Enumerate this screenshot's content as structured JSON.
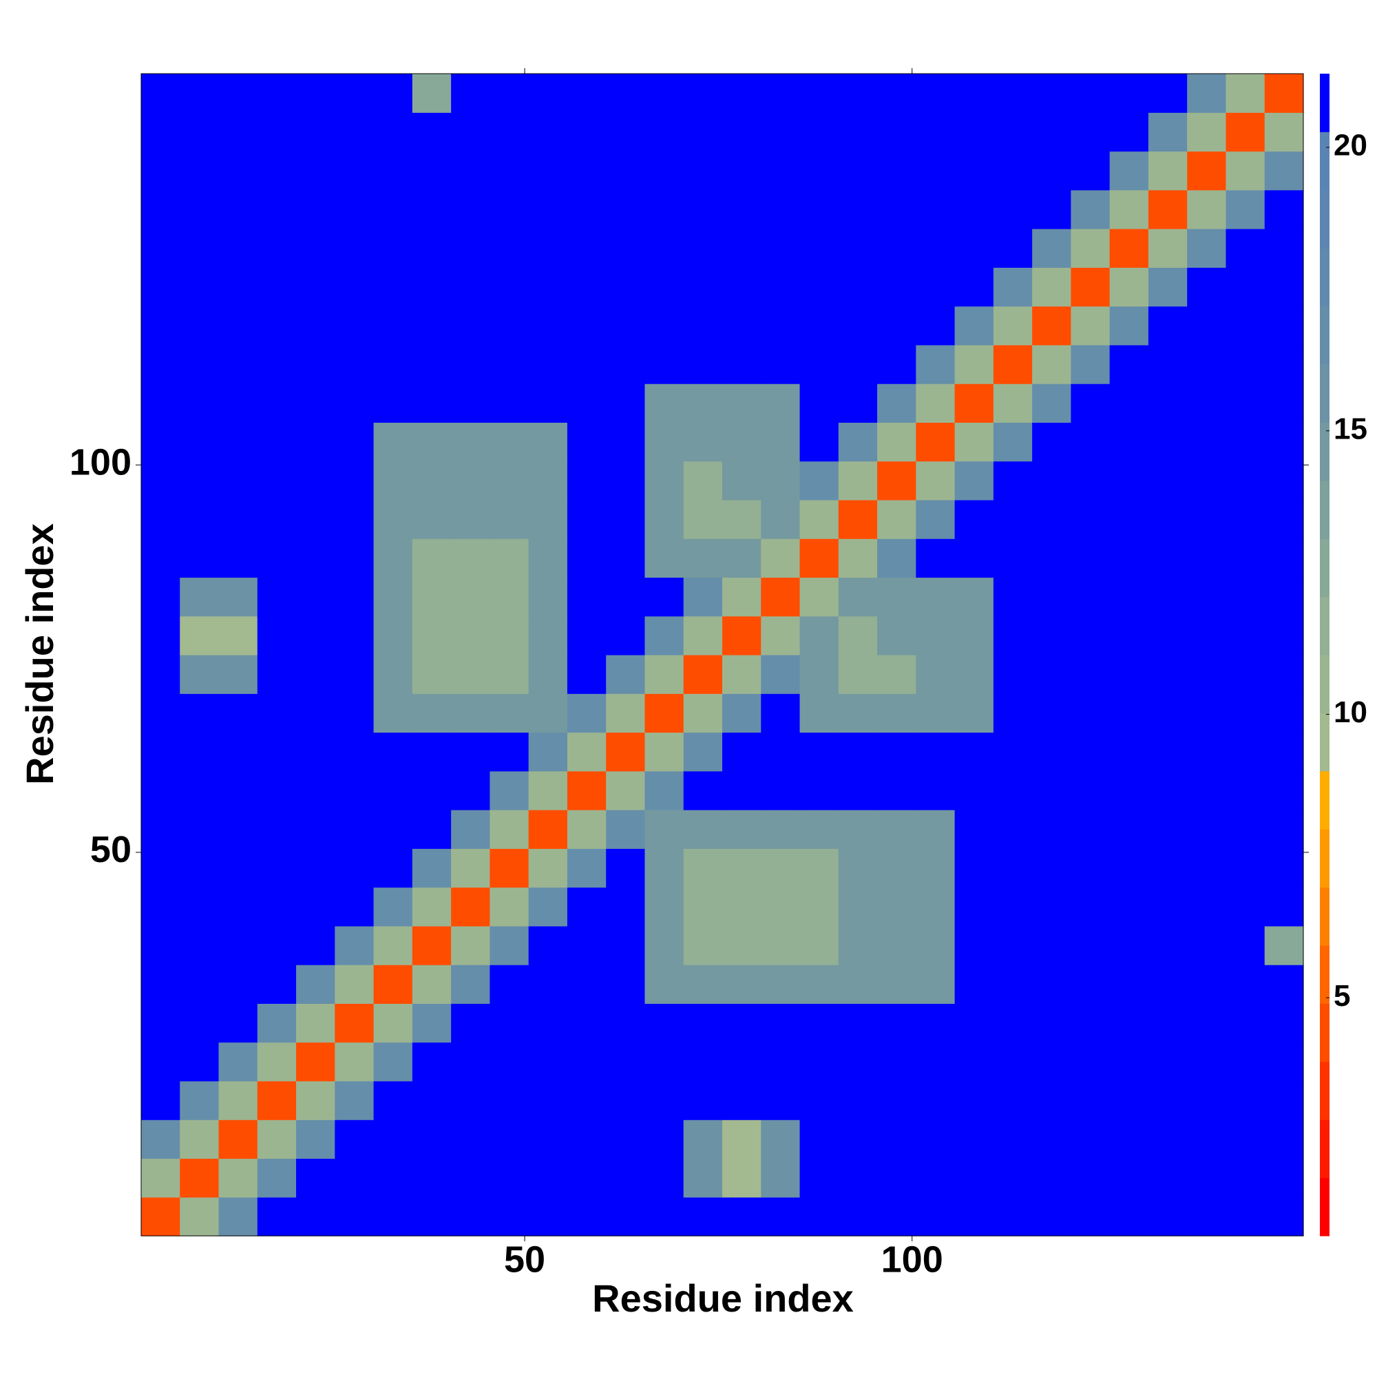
{
  "chart_data": {
    "type": "heatmap",
    "x_label": "Residue index",
    "y_label": "Residue index",
    "xlim": [
      0.5,
      150.5
    ],
    "ylim": [
      0.5,
      150.5
    ],
    "xticks": [
      50,
      100
    ],
    "yticks": [
      50,
      100
    ],
    "xbins": [
      0.5,
      5.5,
      10.5,
      15.5,
      20.5,
      25.5,
      30.5,
      35.5,
      40.5,
      45.5,
      50.5,
      55.5,
      60.5,
      65.5,
      70.5,
      75.5,
      80.5,
      85.5,
      90.5,
      95.5,
      100.5,
      105.5,
      110.5,
      115.5,
      120.5,
      125.5,
      130.5,
      135.5,
      140.5,
      145.5,
      150.5
    ],
    "ybins": [
      0.5,
      5.5,
      10.5,
      15.5,
      20.5,
      25.5,
      30.5,
      35.5,
      40.5,
      45.5,
      50.5,
      55.5,
      60.5,
      65.5,
      70.5,
      75.5,
      80.5,
      85.5,
      90.5,
      95.5,
      100.5,
      105.5,
      110.5,
      115.5,
      120.5,
      125.5,
      130.5,
      135.5,
      140.5,
      145.5,
      150.5
    ],
    "values": [
      [
        4,
        11,
        17,
        21,
        21,
        21,
        21,
        21,
        21,
        21,
        21,
        21,
        21,
        21,
        21,
        21,
        21,
        21,
        21,
        21,
        21,
        21,
        21,
        21,
        21,
        21,
        21,
        21,
        21,
        21
      ],
      [
        11,
        4,
        11,
        17,
        21,
        21,
        21,
        21,
        21,
        21,
        21,
        21,
        21,
        21,
        16,
        10,
        16,
        21,
        21,
        21,
        21,
        21,
        21,
        21,
        21,
        21,
        21,
        21,
        21,
        21
      ],
      [
        17,
        11,
        4,
        11,
        17,
        21,
        21,
        21,
        21,
        21,
        21,
        21,
        21,
        21,
        16,
        10,
        16,
        21,
        21,
        21,
        21,
        21,
        21,
        21,
        21,
        21,
        21,
        21,
        21,
        21
      ],
      [
        21,
        17,
        11,
        4,
        11,
        17,
        21,
        21,
        21,
        21,
        21,
        21,
        21,
        21,
        21,
        21,
        21,
        21,
        21,
        21,
        21,
        21,
        21,
        21,
        21,
        21,
        21,
        21,
        21,
        21
      ],
      [
        21,
        21,
        17,
        11,
        4,
        11,
        17,
        21,
        21,
        21,
        21,
        21,
        21,
        21,
        21,
        21,
        21,
        21,
        21,
        21,
        21,
        21,
        21,
        21,
        21,
        21,
        21,
        21,
        21,
        21
      ],
      [
        21,
        21,
        21,
        17,
        11,
        4,
        11,
        17,
        21,
        21,
        21,
        21,
        21,
        21,
        21,
        21,
        21,
        21,
        21,
        21,
        21,
        21,
        21,
        21,
        21,
        21,
        21,
        21,
        21,
        21
      ],
      [
        21,
        21,
        21,
        21,
        17,
        11,
        4,
        11,
        17,
        21,
        21,
        21,
        21,
        15,
        15,
        15,
        15,
        15,
        15,
        15,
        15,
        21,
        21,
        21,
        21,
        21,
        21,
        21,
        21,
        21
      ],
      [
        21,
        21,
        21,
        21,
        21,
        17,
        11,
        4,
        11,
        17,
        21,
        21,
        21,
        15,
        12,
        12,
        12,
        12,
        15,
        15,
        15,
        21,
        21,
        21,
        21,
        21,
        21,
        21,
        21,
        13
      ],
      [
        21,
        21,
        21,
        21,
        21,
        21,
        17,
        11,
        4,
        11,
        17,
        21,
        21,
        15,
        12,
        12,
        12,
        12,
        15,
        15,
        15,
        21,
        21,
        21,
        21,
        21,
        21,
        21,
        21,
        21
      ],
      [
        21,
        21,
        21,
        21,
        21,
        21,
        21,
        17,
        11,
        4,
        11,
        17,
        21,
        15,
        12,
        12,
        12,
        12,
        15,
        15,
        15,
        21,
        21,
        21,
        21,
        21,
        21,
        21,
        21,
        21
      ],
      [
        21,
        21,
        21,
        21,
        21,
        21,
        21,
        21,
        17,
        11,
        4,
        11,
        17,
        15,
        15,
        15,
        15,
        15,
        15,
        15,
        15,
        21,
        21,
        21,
        21,
        21,
        21,
        21,
        21,
        21
      ],
      [
        21,
        21,
        21,
        21,
        21,
        21,
        21,
        21,
        21,
        17,
        11,
        4,
        11,
        17,
        21,
        21,
        21,
        21,
        21,
        21,
        21,
        21,
        21,
        21,
        21,
        21,
        21,
        21,
        21,
        21
      ],
      [
        21,
        21,
        21,
        21,
        21,
        21,
        21,
        21,
        21,
        21,
        17,
        11,
        4,
        11,
        17,
        21,
        21,
        21,
        21,
        21,
        21,
        21,
        21,
        21,
        21,
        21,
        21,
        21,
        21,
        21
      ],
      [
        21,
        21,
        21,
        21,
        21,
        21,
        15,
        15,
        15,
        15,
        15,
        17,
        11,
        4,
        11,
        17,
        21,
        15,
        15,
        15,
        15,
        15,
        21,
        21,
        21,
        21,
        21,
        21,
        21,
        21
      ],
      [
        21,
        16,
        16,
        21,
        21,
        21,
        15,
        12,
        12,
        12,
        15,
        21,
        17,
        11,
        4,
        11,
        17,
        15,
        12,
        12,
        15,
        15,
        21,
        21,
        21,
        21,
        21,
        21,
        21,
        21
      ],
      [
        21,
        10,
        10,
        21,
        21,
        21,
        15,
        12,
        12,
        12,
        15,
        21,
        21,
        17,
        11,
        4,
        11,
        15,
        12,
        15,
        15,
        15,
        21,
        21,
        21,
        21,
        21,
        21,
        21,
        21
      ],
      [
        21,
        16,
        16,
        21,
        21,
        21,
        15,
        12,
        12,
        12,
        15,
        21,
        21,
        21,
        17,
        11,
        4,
        11,
        15,
        15,
        15,
        15,
        21,
        21,
        21,
        21,
        21,
        21,
        21,
        21
      ],
      [
        21,
        21,
        21,
        21,
        21,
        21,
        15,
        12,
        12,
        12,
        15,
        21,
        21,
        15,
        15,
        15,
        11,
        4,
        11,
        17,
        21,
        21,
        21,
        21,
        21,
        21,
        21,
        21,
        21,
        21
      ],
      [
        21,
        21,
        21,
        21,
        21,
        21,
        15,
        15,
        15,
        15,
        15,
        21,
        21,
        15,
        12,
        12,
        15,
        11,
        4,
        11,
        17,
        21,
        21,
        21,
        21,
        21,
        21,
        21,
        21,
        21
      ],
      [
        21,
        21,
        21,
        21,
        21,
        21,
        15,
        15,
        15,
        15,
        15,
        21,
        21,
        15,
        12,
        15,
        15,
        17,
        11,
        4,
        11,
        17,
        21,
        21,
        21,
        21,
        21,
        21,
        21,
        21
      ],
      [
        21,
        21,
        21,
        21,
        21,
        21,
        15,
        15,
        15,
        15,
        15,
        21,
        21,
        15,
        15,
        15,
        15,
        21,
        17,
        11,
        4,
        11,
        17,
        21,
        21,
        21,
        21,
        21,
        21,
        21
      ],
      [
        21,
        21,
        21,
        21,
        21,
        21,
        21,
        21,
        21,
        21,
        21,
        21,
        21,
        15,
        15,
        15,
        15,
        21,
        21,
        17,
        11,
        4,
        11,
        17,
        21,
        21,
        21,
        21,
        21,
        21
      ],
      [
        21,
        21,
        21,
        21,
        21,
        21,
        21,
        21,
        21,
        21,
        21,
        21,
        21,
        21,
        21,
        21,
        21,
        21,
        21,
        21,
        17,
        11,
        4,
        11,
        17,
        21,
        21,
        21,
        21,
        21
      ],
      [
        21,
        21,
        21,
        21,
        21,
        21,
        21,
        21,
        21,
        21,
        21,
        21,
        21,
        21,
        21,
        21,
        21,
        21,
        21,
        21,
        21,
        17,
        11,
        4,
        11,
        17,
        21,
        21,
        21,
        21
      ],
      [
        21,
        21,
        21,
        21,
        21,
        21,
        21,
        21,
        21,
        21,
        21,
        21,
        21,
        21,
        21,
        21,
        21,
        21,
        21,
        21,
        21,
        21,
        17,
        11,
        4,
        11,
        17,
        21,
        21,
        21
      ],
      [
        21,
        21,
        21,
        21,
        21,
        21,
        21,
        21,
        21,
        21,
        21,
        21,
        21,
        21,
        21,
        21,
        21,
        21,
        21,
        21,
        21,
        21,
        21,
        17,
        11,
        4,
        11,
        17,
        21,
        21
      ],
      [
        21,
        21,
        21,
        21,
        21,
        21,
        21,
        21,
        21,
        21,
        21,
        21,
        21,
        21,
        21,
        21,
        21,
        21,
        21,
        21,
        21,
        21,
        21,
        21,
        17,
        11,
        4,
        11,
        17,
        21
      ],
      [
        21,
        21,
        21,
        21,
        21,
        21,
        21,
        21,
        21,
        21,
        21,
        21,
        21,
        21,
        21,
        21,
        21,
        21,
        21,
        21,
        21,
        21,
        21,
        21,
        21,
        17,
        11,
        4,
        11,
        17
      ],
      [
        21,
        21,
        21,
        21,
        21,
        21,
        21,
        21,
        21,
        21,
        21,
        21,
        21,
        21,
        21,
        21,
        21,
        21,
        21,
        21,
        21,
        21,
        21,
        21,
        21,
        21,
        17,
        11,
        4,
        11
      ],
      [
        21,
        21,
        21,
        21,
        21,
        21,
        21,
        13,
        21,
        21,
        21,
        21,
        21,
        21,
        21,
        21,
        21,
        21,
        21,
        21,
        21,
        21,
        21,
        21,
        21,
        21,
        21,
        17,
        11,
        4
      ]
    ],
    "colorbar": {
      "lim": [
        0.8,
        21.3
      ],
      "ticks": [
        5,
        10,
        15,
        20
      ],
      "colors": [
        "#ff0000",
        "#ff1a00",
        "#ff3300",
        "#ff4d00",
        "#ff6600",
        "#ff8000",
        "#ff9900",
        "#ffad00",
        "#a3b98f",
        "#9cb591",
        "#93b094",
        "#88a998",
        "#7ea19c",
        "#7499a0",
        "#6b93a5",
        "#658eaa",
        "#6089ae",
        "#5c86b1",
        "#5a84b3",
        "#0000ff"
      ]
    }
  }
}
